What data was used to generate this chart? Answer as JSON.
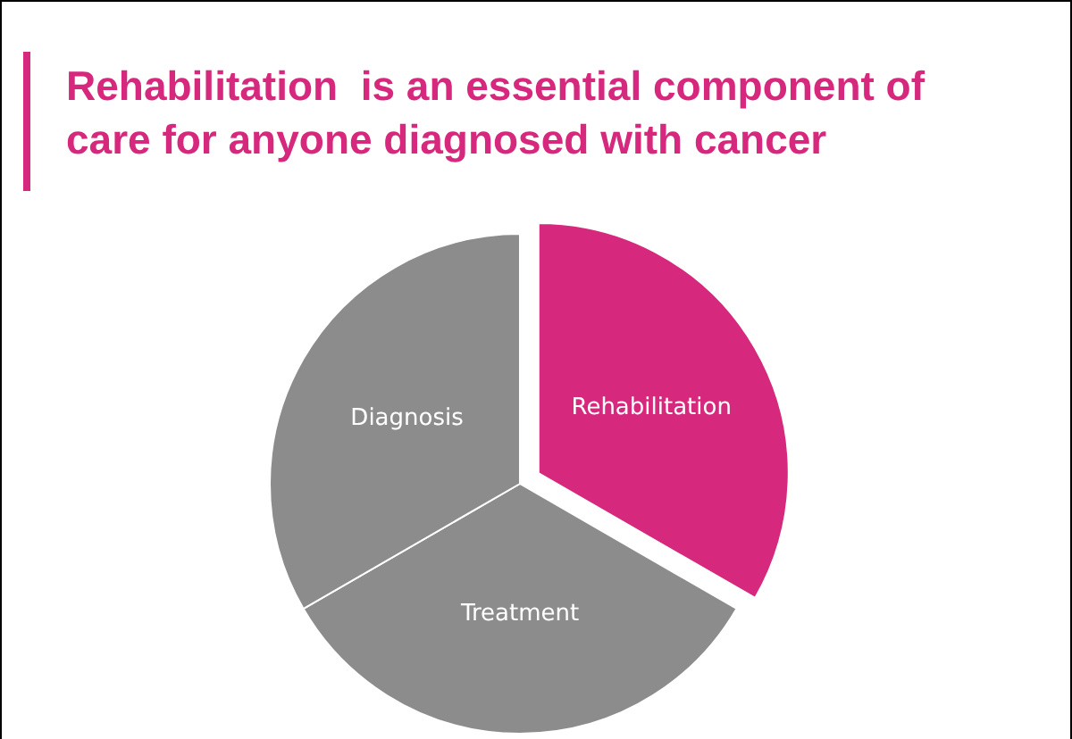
{
  "chart_data": {
    "type": "pie",
    "title": "Rehabilitation  is an essential component of care for anyone diagnosed with cancer",
    "categories": [
      "Rehabilitation",
      "Treatment",
      "Diagnosis"
    ],
    "values": [
      33.33,
      33.33,
      33.34
    ],
    "colors": [
      "#d6287c",
      "#8c8c8c",
      "#8c8c8c"
    ]
  }
}
